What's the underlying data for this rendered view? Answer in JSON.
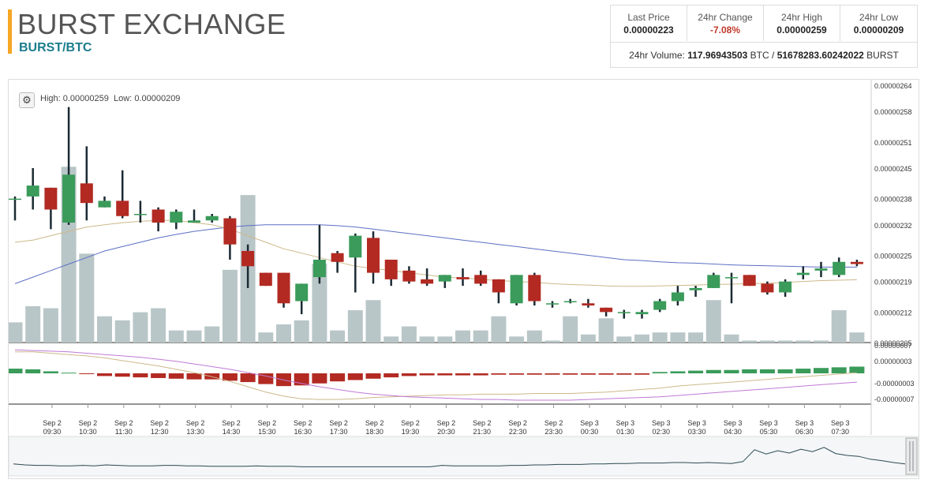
{
  "header": {
    "title": "BURST EXCHANGE",
    "pair": "BURST/BTC"
  },
  "stats": [
    {
      "label": "Last Price",
      "value": "0.00000223"
    },
    {
      "label": "24hr Change",
      "value": "-7.08%"
    },
    {
      "label": "24hr High",
      "value": "0.00000259"
    },
    {
      "label": "24hr Low",
      "value": "0.00000209"
    }
  ],
  "volume": {
    "label": "24hr Volume:",
    "btc": "117.96943503",
    "btc_unit": "BTC /",
    "burst": "51678283.60242022",
    "burst_unit": "BURST"
  },
  "toolbar": {
    "settings_icon": "gear-icon",
    "high_label": "High:",
    "high_value": "0.00000259",
    "low_label": "Low:",
    "low_value": "0.00000209"
  },
  "colors": {
    "up": "#3a9b5a",
    "down": "#b22a22",
    "wick": "#1b2a33",
    "volume": "#b9c6c8",
    "ma_slow": "#5b6fc4",
    "ma_fast": "#cdb98a",
    "macd_signal": "#c07ad6"
  },
  "chart_data": {
    "type": "candlestick",
    "y_ticks": [
      "0.00000264",
      "0.00000258",
      "0.00000251",
      "0.00000245",
      "0.00000238",
      "0.00000232",
      "0.00000225",
      "0.00000219",
      "0.00000212",
      "0.00000205"
    ],
    "ylim": [
      2.05e-06,
      2.64e-06
    ],
    "x_ticks": [
      [
        "Sep 2",
        "09:30"
      ],
      [
        "Sep 2",
        "10:30"
      ],
      [
        "Sep 2",
        "11:30"
      ],
      [
        "Sep 2",
        "12:30"
      ],
      [
        "Sep 2",
        "13:30"
      ],
      [
        "Sep 2",
        "14:30"
      ],
      [
        "Sep 2",
        "15:30"
      ],
      [
        "Sep 2",
        "16:30"
      ],
      [
        "Sep 2",
        "17:30"
      ],
      [
        "Sep 2",
        "18:30"
      ],
      [
        "Sep 2",
        "19:30"
      ],
      [
        "Sep 2",
        "20:30"
      ],
      [
        "Sep 2",
        "21:30"
      ],
      [
        "Sep 2",
        "22:30"
      ],
      [
        "Sep 2",
        "23:30"
      ],
      [
        "Sep 3",
        "00:30"
      ],
      [
        "Sep 3",
        "01:30"
      ],
      [
        "Sep 3",
        "02:30"
      ],
      [
        "Sep 3",
        "03:30"
      ],
      [
        "Sep 3",
        "04:30"
      ],
      [
        "Sep 3",
        "05:30"
      ],
      [
        "Sep 3",
        "06:30"
      ],
      [
        "Sep 3",
        "07:30"
      ]
    ],
    "candles": [
      {
        "o": 238.0,
        "h": 238.5,
        "l": 233.0,
        "c": 238.0,
        "v": 0.1
      },
      {
        "o": 238.5,
        "h": 245.0,
        "l": 235.5,
        "c": 241.0,
        "v": 0.18
      },
      {
        "o": 240.5,
        "h": 240.5,
        "l": 231.0,
        "c": 235.5,
        "v": 0.17
      },
      {
        "o": 232.5,
        "h": 259.0,
        "l": 232.0,
        "c": 243.5,
        "v": 0.87
      },
      {
        "o": 241.5,
        "h": 250.0,
        "l": 233.0,
        "c": 237.0,
        "v": 0.44
      },
      {
        "o": 236.0,
        "h": 238.5,
        "l": 236.0,
        "c": 237.5,
        "v": 0.13
      },
      {
        "o": 237.5,
        "h": 244.5,
        "l": 233.5,
        "c": 234.0,
        "v": 0.11
      },
      {
        "o": 234.5,
        "h": 237.5,
        "l": 232.5,
        "c": 234.5,
        "v": 0.15
      },
      {
        "o": 235.5,
        "h": 236.0,
        "l": 230.5,
        "c": 232.5,
        "v": 0.17
      },
      {
        "o": 232.5,
        "h": 235.5,
        "l": 231.0,
        "c": 235.0,
        "v": 0.06
      },
      {
        "o": 232.5,
        "h": 235.5,
        "l": 232.5,
        "c": 233.0,
        "v": 0.06
      },
      {
        "o": 233.0,
        "h": 234.5,
        "l": 232.5,
        "c": 234.0,
        "v": 0.08
      },
      {
        "o": 233.5,
        "h": 234.0,
        "l": 224.0,
        "c": 227.5,
        "v": 0.36
      },
      {
        "o": 226.0,
        "h": 227.5,
        "l": 217.5,
        "c": 222.5,
        "v": 0.73
      },
      {
        "o": 221.0,
        "h": 221.0,
        "l": 218.0,
        "c": 218.0,
        "v": 0.05
      },
      {
        "o": 221.0,
        "h": 221.0,
        "l": 213.0,
        "c": 214.0,
        "v": 0.09
      },
      {
        "o": 214.5,
        "h": 218.5,
        "l": 211.5,
        "c": 218.5,
        "v": 0.11
      },
      {
        "o": 220.0,
        "h": 232.0,
        "l": 218.5,
        "c": 224.0,
        "v": 0.39
      },
      {
        "o": 225.5,
        "h": 226.0,
        "l": 221.0,
        "c": 223.5,
        "v": 0.06
      },
      {
        "o": 224.5,
        "h": 230.0,
        "l": 216.5,
        "c": 229.5,
        "v": 0.16
      },
      {
        "o": 229.0,
        "h": 230.5,
        "l": 218.5,
        "c": 221.0,
        "v": 0.21
      },
      {
        "o": 224.0,
        "h": 224.0,
        "l": 218.0,
        "c": 219.5,
        "v": 0.03
      },
      {
        "o": 221.5,
        "h": 222.5,
        "l": 218.5,
        "c": 219.0,
        "v": 0.08
      },
      {
        "o": 219.5,
        "h": 222.0,
        "l": 218.0,
        "c": 218.5,
        "v": 0.03
      },
      {
        "o": 219.0,
        "h": 220.5,
        "l": 217.5,
        "c": 220.5,
        "v": 0.03
      },
      {
        "o": 220.0,
        "h": 222.0,
        "l": 218.0,
        "c": 219.5,
        "v": 0.06
      },
      {
        "o": 220.5,
        "h": 221.5,
        "l": 218.0,
        "c": 218.5,
        "v": 0.06
      },
      {
        "o": 219.5,
        "h": 219.5,
        "l": 214.0,
        "c": 216.5,
        "v": 0.13
      },
      {
        "o": 214.0,
        "h": 220.5,
        "l": 213.5,
        "c": 220.5,
        "v": 0.03
      },
      {
        "o": 220.5,
        "h": 221.0,
        "l": 213.5,
        "c": 214.5,
        "v": 0.06
      },
      {
        "o": 214.0,
        "h": 214.5,
        "l": 213.0,
        "c": 214.0,
        "v": 0.01
      },
      {
        "o": 214.5,
        "h": 215.0,
        "l": 214.0,
        "c": 214.5,
        "v": 0.13
      },
      {
        "o": 214.0,
        "h": 215.0,
        "l": 213.0,
        "c": 213.5,
        "v": 0.04
      },
      {
        "o": 213.0,
        "h": 213.0,
        "l": 211.0,
        "c": 212.0,
        "v": 0.12
      },
      {
        "o": 212.0,
        "h": 212.5,
        "l": 210.5,
        "c": 212.0,
        "v": 0.03
      },
      {
        "o": 211.5,
        "h": 212.5,
        "l": 210.5,
        "c": 212.0,
        "v": 0.04
      },
      {
        "o": 212.5,
        "h": 215.0,
        "l": 212.0,
        "c": 214.5,
        "v": 0.05
      },
      {
        "o": 214.5,
        "h": 218.0,
        "l": 213.5,
        "c": 216.5,
        "v": 0.05
      },
      {
        "o": 217.0,
        "h": 218.0,
        "l": 215.5,
        "c": 217.5,
        "v": 0.05
      },
      {
        "o": 217.5,
        "h": 221.0,
        "l": 217.5,
        "c": 220.5,
        "v": 0.21
      },
      {
        "o": 220.0,
        "h": 221.0,
        "l": 214.0,
        "c": 220.0,
        "v": 0.04
      },
      {
        "o": 220.5,
        "h": 220.5,
        "l": 218.0,
        "c": 218.0,
        "v": 0.01
      },
      {
        "o": 218.5,
        "h": 219.0,
        "l": 216.0,
        "c": 216.5,
        "v": 0.01
      },
      {
        "o": 216.5,
        "h": 219.5,
        "l": 215.5,
        "c": 219.0,
        "v": 0.01
      },
      {
        "o": 220.5,
        "h": 222.5,
        "l": 219.5,
        "c": 221.0,
        "v": 0.01
      },
      {
        "o": 221.5,
        "h": 223.5,
        "l": 220.0,
        "c": 222.0,
        "v": 0.01
      },
      {
        "o": 220.5,
        "h": 224.5,
        "l": 220.0,
        "c": 223.5,
        "v": 0.16
      },
      {
        "o": 223.5,
        "h": 224.0,
        "l": 222.5,
        "c": 223.0,
        "v": 0.05
      }
    ],
    "ma_slow": [
      218.5,
      220.0,
      221.5,
      223.0,
      224.5,
      226.0,
      227.0,
      228.0,
      229.0,
      229.8,
      230.5,
      231.0,
      231.5,
      231.8,
      232.0,
      232.0,
      232.0,
      232.0,
      231.8,
      231.5,
      231.0,
      230.5,
      230.0,
      229.5,
      229.0,
      228.5,
      228.0,
      227.5,
      227.0,
      226.5,
      226.0,
      225.5,
      225.0,
      224.5,
      224.0,
      223.8,
      223.5,
      223.3,
      223.2,
      223.0,
      222.8,
      222.7,
      222.6,
      222.5,
      222.4,
      222.3,
      222.3,
      222.3
    ],
    "ma_fast": [
      228.0,
      228.5,
      229.5,
      230.5,
      231.5,
      232.0,
      232.5,
      232.8,
      233.0,
      233.0,
      232.5,
      232.0,
      231.0,
      229.5,
      228.0,
      226.5,
      225.5,
      224.5,
      223.5,
      222.5,
      222.0,
      221.5,
      221.0,
      220.5,
      220.0,
      219.8,
      219.5,
      219.2,
      219.0,
      218.8,
      218.5,
      218.3,
      218.2,
      218.0,
      217.9,
      217.9,
      218.0,
      218.1,
      218.2,
      218.3,
      218.4,
      218.5,
      218.6,
      218.8,
      219.0,
      219.2,
      219.3,
      219.4
    ],
    "macd": {
      "y_ticks": [
        "0.00000007",
        "0.00000003",
        "-0.00000003",
        "-0.00000007"
      ],
      "hist": [
        0.7,
        0.6,
        0.3,
        0.1,
        -0.1,
        -0.4,
        -0.5,
        -0.6,
        -0.7,
        -0.8,
        -0.9,
        -0.9,
        -1.1,
        -1.3,
        -1.6,
        -1.9,
        -1.8,
        -1.5,
        -1.2,
        -1.0,
        -0.8,
        -0.6,
        -0.4,
        -0.3,
        -0.3,
        -0.3,
        -0.3,
        -0.2,
        -0.2,
        -0.2,
        -0.2,
        -0.2,
        -0.2,
        -0.2,
        -0.2,
        -0.2,
        0.2,
        0.3,
        0.4,
        0.5,
        0.5,
        0.6,
        0.6,
        0.6,
        0.7,
        0.8,
        0.9,
        1.0
      ],
      "line_a": [
        3.2,
        3.2,
        3.0,
        2.8,
        2.6,
        2.3,
        1.9,
        1.5,
        1.1,
        0.6,
        0.1,
        -0.5,
        -1.2,
        -2.0,
        -2.8,
        -3.4,
        -3.8,
        -3.9,
        -3.9,
        -3.8,
        -3.6,
        -3.5,
        -3.4,
        -3.3,
        -3.2,
        -3.2,
        -3.1,
        -3.1,
        -3.1,
        -3.0,
        -3.0,
        -3.0,
        -2.9,
        -2.8,
        -2.6,
        -2.4,
        -2.2,
        -1.9,
        -1.7,
        -1.5,
        -1.3,
        -1.1,
        -0.9,
        -0.7,
        -0.5,
        -0.3,
        -0.1,
        0.1
      ],
      "line_b": [
        3.5,
        3.4,
        3.3,
        3.2,
        3.0,
        2.8,
        2.6,
        2.4,
        2.1,
        1.8,
        1.4,
        1.0,
        0.6,
        0.1,
        -0.4,
        -1.0,
        -1.5,
        -2.0,
        -2.4,
        -2.8,
        -3.1,
        -3.3,
        -3.5,
        -3.6,
        -3.7,
        -3.8,
        -3.9,
        -3.9,
        -4.0,
        -4.0,
        -4.0,
        -4.0,
        -3.9,
        -3.8,
        -3.7,
        -3.6,
        -3.5,
        -3.3,
        -3.1,
        -2.9,
        -2.7,
        -2.5,
        -2.3,
        -2.1,
        -1.9,
        -1.7,
        -1.5,
        -1.3
      ]
    },
    "navigator": [
      0.12,
      0.1,
      0.09,
      0.09,
      0.08,
      0.08,
      0.09,
      0.08,
      0.1,
      0.09,
      0.08,
      0.08,
      0.08,
      0.09,
      0.09,
      0.08,
      0.08,
      0.07,
      0.07,
      0.07,
      0.07,
      0.08,
      0.07,
      0.07,
      0.07,
      0.06,
      0.06,
      0.06,
      0.06,
      0.06,
      0.06,
      0.06,
      0.06,
      0.06,
      0.06,
      0.06,
      0.06,
      0.09,
      0.08,
      0.08,
      0.08,
      0.08,
      0.08,
      0.09,
      0.09,
      0.1,
      0.1,
      0.11,
      0.11,
      0.11,
      0.12,
      0.12,
      0.13,
      0.13,
      0.14,
      0.14,
      0.14,
      0.15,
      0.15,
      0.14,
      0.15,
      0.14,
      0.13,
      0.17,
      0.42,
      0.33,
      0.4,
      0.35,
      0.43,
      0.38,
      0.47,
      0.34,
      0.3,
      0.28,
      0.22,
      0.19,
      0.15,
      0.12
    ],
    "grid": false,
    "legend": "none"
  }
}
